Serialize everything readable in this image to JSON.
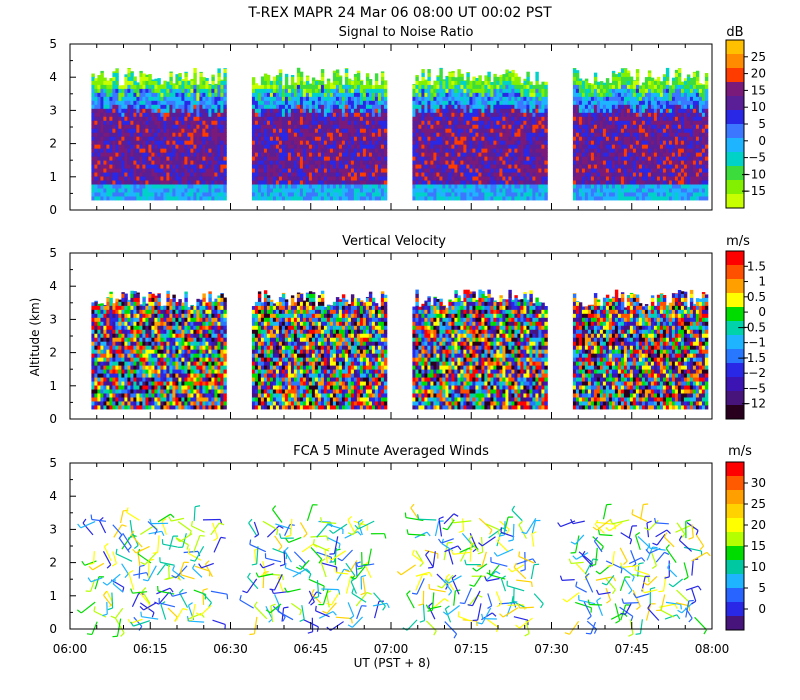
{
  "figure": {
    "title": "T-REX   MAPR 24 Mar 06   08:00 UT   00:02   PST",
    "xlabel": "UT  (PST + 8)",
    "x_tick_labels": [
      "06:00",
      "06:15",
      "06:30",
      "06:45",
      "07:00",
      "07:15",
      "07:30",
      "07:45",
      "08:00"
    ]
  },
  "chart_data": [
    {
      "type": "heatmap",
      "title": "Signal to Noise Ratio",
      "xlabel": "UT  (PST + 8)",
      "ylabel": "",
      "x_range": [
        "06:00",
        "08:00"
      ],
      "ylim": [
        0,
        5
      ],
      "y_ticks": [
        0,
        1,
        2,
        3,
        4,
        5
      ],
      "data_blocks": [
        [
          "06:04",
          "06:29"
        ],
        [
          "06:34",
          "06:59"
        ],
        [
          "07:04",
          "07:29"
        ],
        [
          "07:34",
          "07:59"
        ]
      ],
      "altitude_range_km": [
        0.3,
        4.2
      ],
      "colorbar": {
        "unit": "dB",
        "tick_labels": [
          "25",
          "20",
          "15",
          "10",
          "5",
          "0",
          "−5",
          "−10",
          "−15"
        ],
        "colors": [
          "#ffc000",
          "#ff8c00",
          "#ff3c00",
          "#7a1a7a",
          "#5a1e96",
          "#2828e6",
          "#3c78ff",
          "#1eb4ff",
          "#00d2c8",
          "#3cdc3c",
          "#82f000",
          "#c8ff00"
        ]
      }
    },
    {
      "type": "heatmap",
      "title": "Vertical Velocity",
      "xlabel": "UT  (PST + 8)",
      "ylabel": "Altitude (km)",
      "x_range": [
        "06:00",
        "08:00"
      ],
      "ylim": [
        0,
        5
      ],
      "y_ticks": [
        0,
        1,
        2,
        3,
        4,
        5
      ],
      "data_blocks": [
        [
          "06:04",
          "06:29"
        ],
        [
          "06:34",
          "06:59"
        ],
        [
          "07:04",
          "07:29"
        ],
        [
          "07:34",
          "07:59"
        ]
      ],
      "altitude_range_km": [
        0.3,
        3.8
      ],
      "colorbar": {
        "unit": "m/s",
        "tick_labels": [
          "1.5",
          "1",
          "0.5",
          "0",
          "−0.5",
          "−1",
          "−1.5",
          "−2",
          "−5",
          "−12"
        ],
        "colors": [
          "#ff0000",
          "#ff5000",
          "#ffa000",
          "#ffff00",
          "#00dc00",
          "#00d2aa",
          "#1eb4ff",
          "#2878ff",
          "#2828e6",
          "#3c14b4",
          "#46147a",
          "#28001e"
        ]
      }
    },
    {
      "type": "scatter",
      "title": "FCA 5 Minute Averaged Winds",
      "xlabel": "UT  (PST + 8)",
      "ylabel": "",
      "x_range": [
        "06:00",
        "08:00"
      ],
      "ylim": [
        0,
        5
      ],
      "y_ticks": [
        0,
        1,
        2,
        3,
        4,
        5
      ],
      "marker": "wind barbs",
      "data_blocks": [
        [
          "06:04",
          "06:29"
        ],
        [
          "06:34",
          "06:59"
        ],
        [
          "07:04",
          "07:29"
        ],
        [
          "07:34",
          "07:59"
        ]
      ],
      "altitude_range_km": [
        0.1,
        3.5
      ],
      "colorbar": {
        "unit": "m/s",
        "tick_labels": [
          "30",
          "25",
          "20",
          "15",
          "10",
          "5",
          "0"
        ],
        "colors": [
          "#ff0000",
          "#ff5a00",
          "#ffa000",
          "#ffd200",
          "#ffff00",
          "#b4ff00",
          "#00dc00",
          "#00c8a0",
          "#1eb4ff",
          "#2864ff",
          "#2828e6",
          "#46147a"
        ]
      }
    }
  ]
}
